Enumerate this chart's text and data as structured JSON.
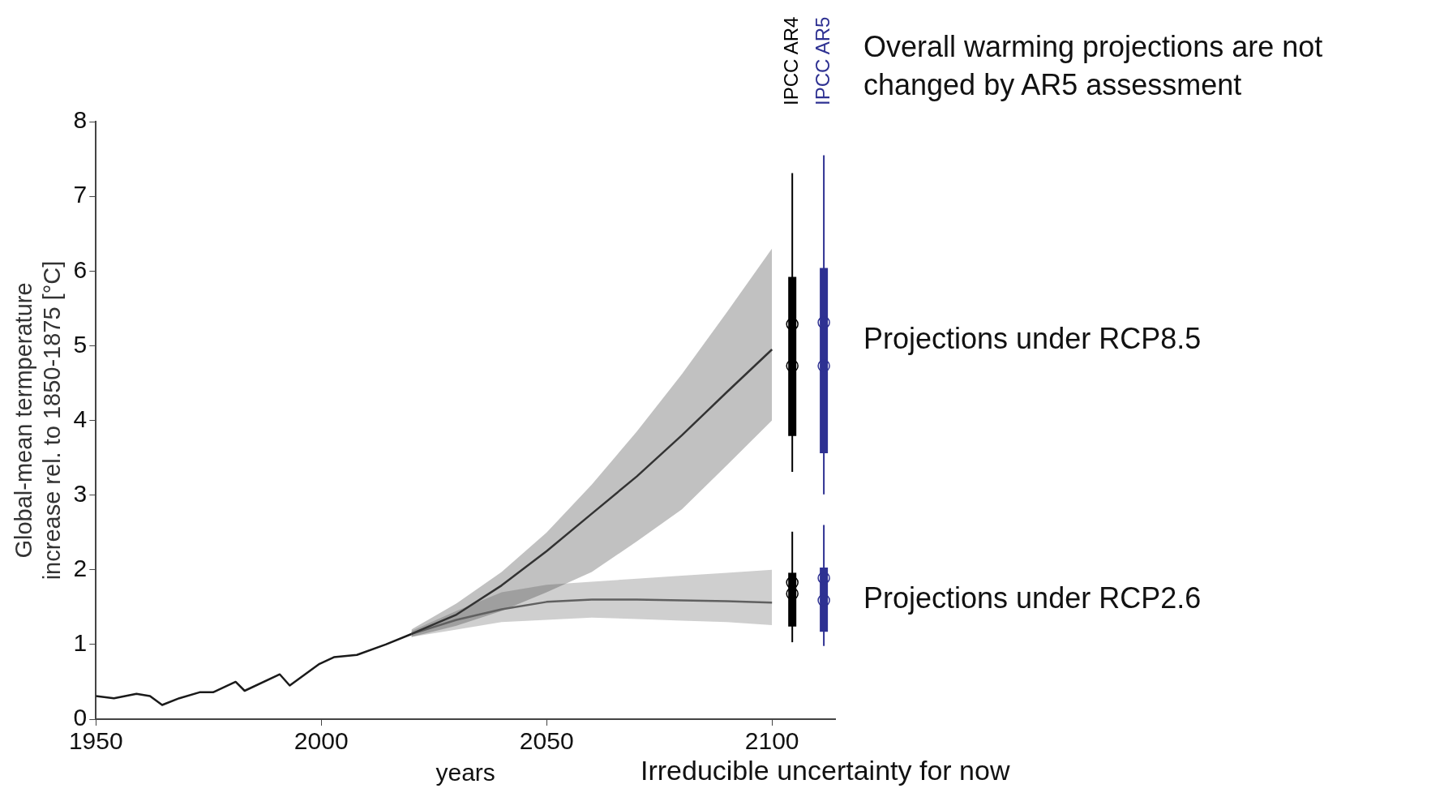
{
  "chart_data": {
    "type": "line",
    "xlabel": "years",
    "ylabel": "Global-mean termperature\nincrease rel. to 1850-1875 [°C]",
    "xlim": [
      1950,
      2114
    ],
    "xticks": [
      1950,
      2000,
      2050,
      2100
    ],
    "ylim": [
      0,
      8
    ],
    "yticks": [
      0,
      1,
      2,
      3,
      4,
      5,
      6,
      7,
      8
    ],
    "series": [
      {
        "color": "#1a1a1a",
        "x": [
          1950,
          1954,
          1959,
          1962,
          1964.7,
          1968.5,
          1973,
          1976,
          1981,
          1983,
          1990.8,
          1993,
          1999.6,
          2002.8,
          2007.9,
          2014.3,
          2020
        ],
        "values": [
          0.31,
          0.28,
          0.34,
          0.31,
          0.19,
          0.28,
          0.36,
          0.36,
          0.5,
          0.38,
          0.6,
          0.45,
          0.74,
          0.83,
          0.86,
          1.0,
          1.14
        ]
      },
      {
        "color": "#333333",
        "x": [
          2020,
          2030,
          2040,
          2050,
          2060,
          2070,
          2080,
          2090,
          2100
        ],
        "values": [
          1.14,
          1.4,
          1.79,
          2.25,
          2.75,
          3.25,
          3.8,
          4.38,
          4.95
        ],
        "lower": [
          1.1,
          1.25,
          1.45,
          1.7,
          1.97,
          2.38,
          2.81,
          3.4,
          4.0
        ],
        "upper": [
          1.2,
          1.55,
          1.97,
          2.5,
          3.14,
          3.85,
          4.62,
          5.45,
          6.3
        ]
      },
      {
        "color": "#606060",
        "x": [
          2020,
          2030,
          2040,
          2050,
          2060,
          2070,
          2080,
          2090,
          2100
        ],
        "values": [
          1.14,
          1.33,
          1.47,
          1.57,
          1.6,
          1.6,
          1.59,
          1.58,
          1.56
        ],
        "lower": [
          1.1,
          1.2,
          1.3,
          1.33,
          1.36,
          1.34,
          1.32,
          1.3,
          1.26
        ],
        "upper": [
          1.18,
          1.45,
          1.7,
          1.8,
          1.84,
          1.88,
          1.92,
          1.96,
          2.0
        ]
      },
      {
        "type": "box",
        "name": "IPCC AR4",
        "color": "#000000",
        "x": [
          2104.5,
          2104.5
        ],
        "boxes": [
          {
            "low": 3.31,
            "q1": 3.79,
            "median": 4.73,
            "mean": 5.29,
            "q3": 5.92,
            "high": 7.31
          },
          {
            "low": 1.03,
            "q1": 1.24,
            "median": 1.68,
            "mean": 1.83,
            "q3": 1.96,
            "high": 2.51
          }
        ]
      },
      {
        "type": "box",
        "name": "IPCC AR5",
        "color": "#2e3192",
        "x": [
          2111.5,
          2111.5
        ],
        "boxes": [
          {
            "low": 3.01,
            "q1": 3.56,
            "median": 4.73,
            "mean": 5.31,
            "q3": 6.04,
            "high": 7.55
          },
          {
            "low": 0.98,
            "q1": 1.17,
            "median": 1.59,
            "mean": 1.89,
            "q3": 2.03,
            "high": 2.6
          }
        ]
      }
    ],
    "annotations": [
      "Overall warming projections are not changed by AR5 assessment",
      "Projections under RCP8.5",
      "Projections under RCP2.6",
      "Irreducible uncertainty for now"
    ]
  }
}
